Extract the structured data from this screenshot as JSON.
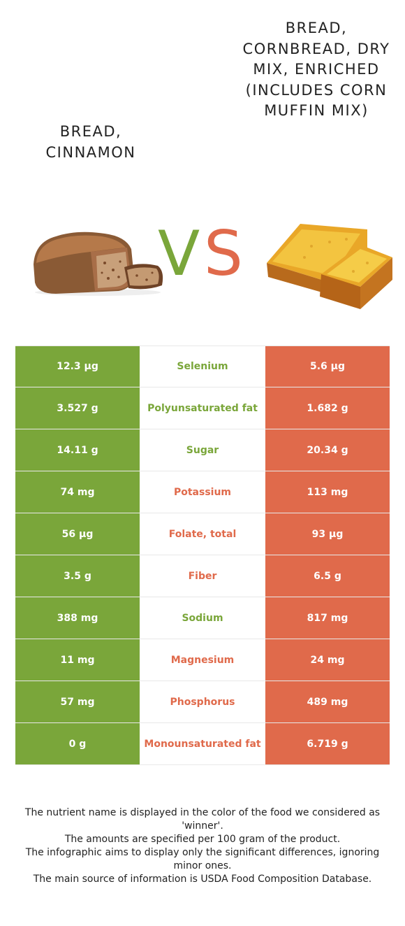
{
  "foods": {
    "left": {
      "name": "Bread, cinnamon",
      "color": "#7aa63a",
      "image_icon": "cinnamon-bread-loaf-image"
    },
    "right": {
      "name": "Bread, cornbread, dry mix, enriched (includes corn muffin mix)",
      "color": "#e06a4b",
      "image_icon": "cornbread-slices-image"
    }
  },
  "vs": {
    "v": "V",
    "s": "S"
  },
  "nutrients": [
    {
      "name": "Selenium",
      "left": "12.3 µg",
      "right": "5.6 µg",
      "winner": "left"
    },
    {
      "name": "Polyunsaturated fat",
      "left": "3.527 g",
      "right": "1.682 g",
      "winner": "left"
    },
    {
      "name": "Sugar",
      "left": "14.11 g",
      "right": "20.34 g",
      "winner": "left"
    },
    {
      "name": "Potassium",
      "left": "74 mg",
      "right": "113 mg",
      "winner": "right"
    },
    {
      "name": "Folate, total",
      "left": "56 µg",
      "right": "93 µg",
      "winner": "right"
    },
    {
      "name": "Fiber",
      "left": "3.5 g",
      "right": "6.5 g",
      "winner": "right"
    },
    {
      "name": "Sodium",
      "left": "388 mg",
      "right": "817 mg",
      "winner": "left"
    },
    {
      "name": "Magnesium",
      "left": "11 mg",
      "right": "24 mg",
      "winner": "right"
    },
    {
      "name": "Phosphorus",
      "left": "57 mg",
      "right": "489 mg",
      "winner": "right"
    },
    {
      "name": "Monounsaturated fat",
      "left": "0 g",
      "right": "6.719 g",
      "winner": "right"
    }
  ],
  "footnote": [
    "The nutrient name is displayed in the color of the food we considered as 'winner'.",
    "The amounts are specified per 100 gram of the product.",
    "The infographic aims to display only the significant differences, ignoring minor ones.",
    "The main source of information is USDA Food Composition Database."
  ]
}
